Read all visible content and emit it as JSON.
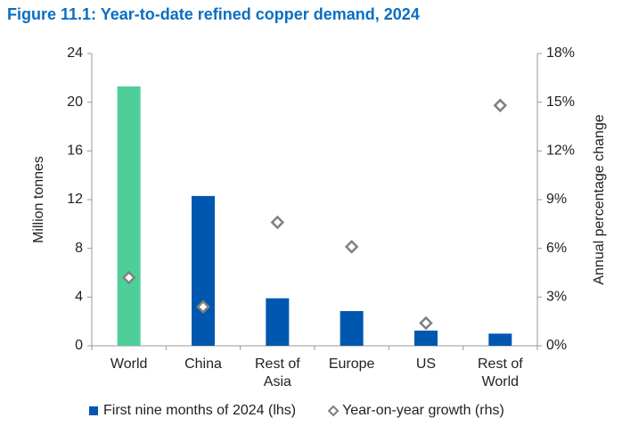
{
  "chart_data": {
    "type": "bar",
    "title": "Figure 11.1: Year-to-date refined copper demand, 2024",
    "y_label": "Million tonnes",
    "y2_label": "Annual percentage change",
    "categories": [
      "World",
      "China",
      "Rest of Asia",
      "Europe",
      "US",
      "Rest of World"
    ],
    "series": [
      {
        "name": "First nine months of 2024 (lhs)",
        "type": "bar",
        "color": "#0057b0",
        "colors": [
          "#4ecf9a",
          "#0057b0",
          "#0057b0",
          "#0057b0",
          "#0057b0",
          "#0057b0"
        ],
        "values": [
          21.3,
          12.3,
          3.9,
          2.85,
          1.25,
          1.0
        ]
      },
      {
        "name": "Year-on-year growth (rhs)",
        "type": "scatter",
        "axis": "y2",
        "color": "#808080",
        "values": [
          4.2,
          2.4,
          7.6,
          6.1,
          1.4,
          14.8
        ]
      }
    ],
    "ylim": [
      0,
      24
    ],
    "yticks": [
      0,
      4,
      8,
      12,
      16,
      20,
      24
    ],
    "y2lim": [
      0,
      18
    ],
    "y2ticks": [
      {
        "value": 0,
        "label": "0%"
      },
      {
        "value": 3,
        "label": "3%"
      },
      {
        "value": 6,
        "label": "6%"
      },
      {
        "value": 9,
        "label": "9%"
      },
      {
        "value": 12,
        "label": "12%"
      },
      {
        "value": 15,
        "label": "15%"
      },
      {
        "value": 18,
        "label": "18%"
      }
    ],
    "grid": false,
    "legend": "bottom"
  }
}
